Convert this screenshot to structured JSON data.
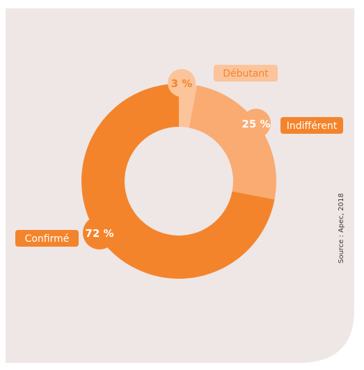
{
  "chart_data": {
    "type": "pie",
    "title": "",
    "categories": [
      "Débutant",
      "Indifférent",
      "Confirmé"
    ],
    "values": [
      3,
      25,
      72
    ],
    "percent_labels": [
      "3 %",
      "25 %",
      "72 %"
    ],
    "colors": [
      "#fbc49a",
      "#f9ab72",
      "#f4842c"
    ],
    "source": "Source : Apec, 2018"
  },
  "colors": {
    "background": "#eee7e6",
    "accent": "#f4842c",
    "text_on_light": "#f4842c",
    "text_on_dark": "#ffffff"
  }
}
